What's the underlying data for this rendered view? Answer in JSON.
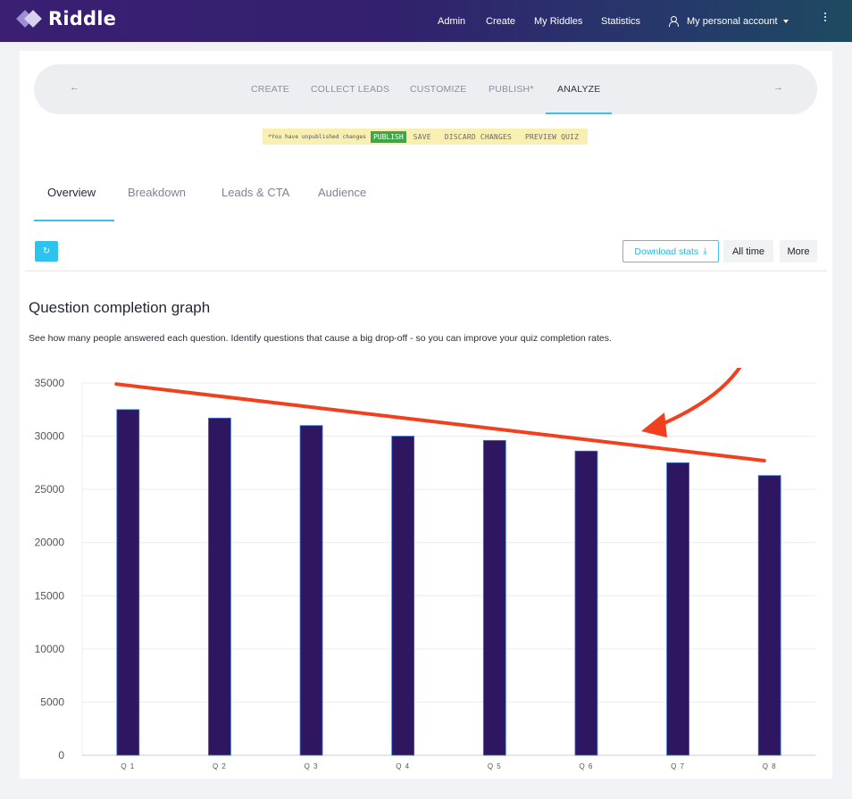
{
  "app": {
    "logo_text": "Riddle"
  },
  "topnav": {
    "items": [
      "Admin",
      "Create",
      "My Riddles",
      "Statistics"
    ],
    "account": "My personal account"
  },
  "stepper": {
    "prev_arrow": "←",
    "next_arrow": "→",
    "steps": [
      "CREATE",
      "COLLECT LEADS",
      "CUSTOMIZE",
      "PUBLISH*",
      "ANALYZE"
    ]
  },
  "notice": {
    "message": "*You have unpublished changes",
    "publish": "PUBLISH",
    "save": "SAVE",
    "discard": "DISCARD CHANGES",
    "preview": "PREVIEW QUIZ"
  },
  "tabs": [
    "Overview",
    "Breakdown",
    "Leads & CTA",
    "Audience"
  ],
  "toolbar": {
    "refresh_icon": "↻",
    "download": "Download stats",
    "download_icon": "⤓",
    "time": "All time",
    "more": "More"
  },
  "section": {
    "title": "Question completion graph",
    "description": "See how many people answered each question. Identify questions that cause a big drop-off - so you can improve your quiz completion rates."
  },
  "chart_data": {
    "type": "bar",
    "categories": [
      "Q1",
      "Q2",
      "Q3",
      "Q4",
      "Q5",
      "Q6",
      "Q7",
      "Q8"
    ],
    "values": [
      32500,
      31700,
      31000,
      30000,
      29600,
      28600,
      27500,
      26300
    ],
    "ylim": [
      0,
      35000
    ],
    "yticks": [
      0,
      5000,
      10000,
      15000,
      20000,
      25000,
      30000,
      35000
    ],
    "bar_color": "#2e1760",
    "grid": true,
    "annotations": [
      "red trend line from Q1 to Q8",
      "red curved arrow pointing at trend line"
    ],
    "annotation_color": "#f2401e"
  }
}
